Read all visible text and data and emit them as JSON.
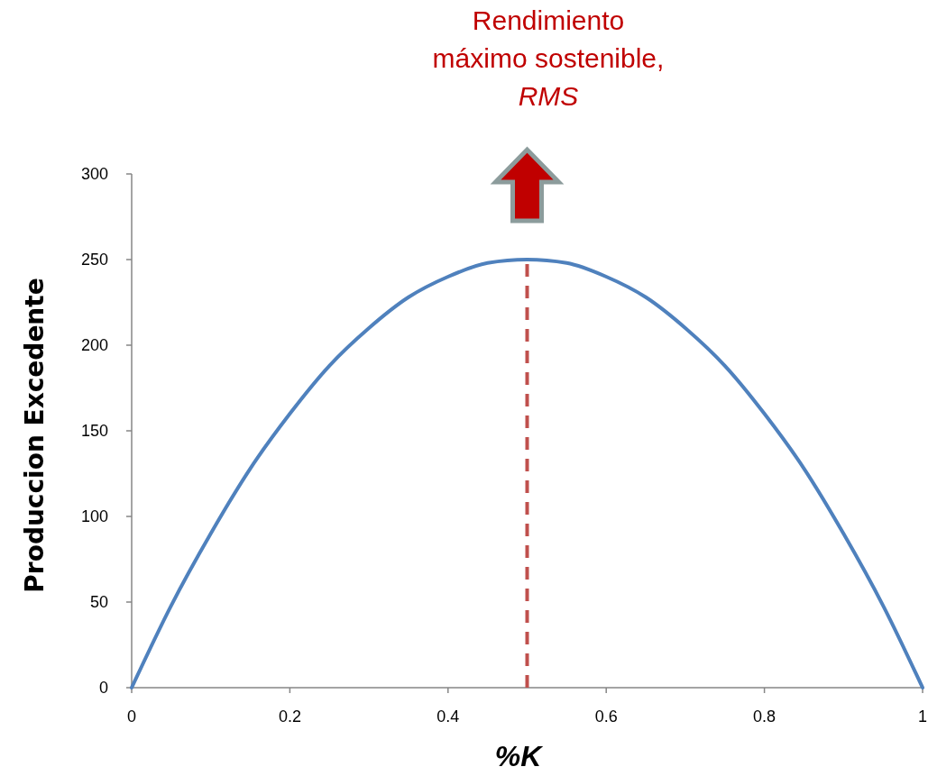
{
  "chart_data": {
    "type": "line",
    "xlabel": "%K",
    "ylabel": "Produccion Excedente",
    "annotations": [
      "Rendimiento\nmáximo sostenible,\nRMS"
    ],
    "x": [
      0,
      0.05,
      0.1,
      0.15,
      0.2,
      0.25,
      0.3,
      0.35,
      0.4,
      0.45,
      0.5,
      0.55,
      0.6,
      0.65,
      0.7,
      0.75,
      0.8,
      0.85,
      0.9,
      0.95,
      1
    ],
    "series": [
      {
        "color": "#4f81bd",
        "values": [
          0,
          48,
          90,
          128,
          160,
          188,
          210,
          228,
          240,
          248,
          250,
          248,
          240,
          228,
          210,
          188,
          160,
          128,
          90,
          48,
          0
        ]
      }
    ],
    "xlim": [
      0,
      1
    ],
    "xticks": [
      0,
      0.2,
      0.4,
      0.6,
      0.8,
      1
    ],
    "ylim": [
      0,
      300
    ],
    "yticks": [
      0,
      50,
      100,
      150,
      200,
      250,
      300
    ],
    "ref_lines": [
      {
        "axis": "x",
        "value": 0.5,
        "color": "#c0504d",
        "line_style": "dashed"
      }
    ],
    "grid": false,
    "line_style": "solid"
  }
}
